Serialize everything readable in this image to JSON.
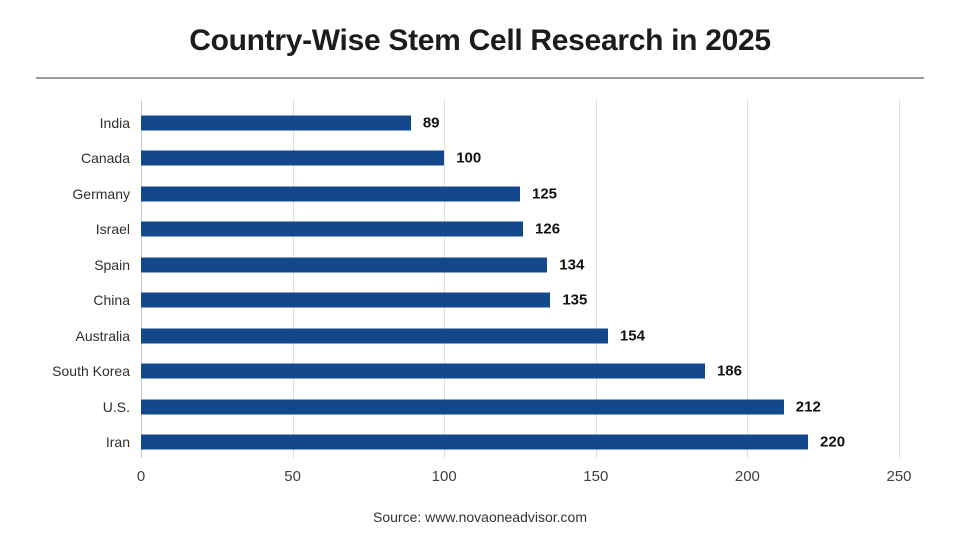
{
  "title": "Country-Wise Stem Cell Research in 2025",
  "footer": {
    "source": "Source: www.novaoneadvisor.com"
  },
  "colors": {
    "bar": "#13498C",
    "grid": "#DEDEDE",
    "axis_line": "#CCCCCC",
    "divider": "#9A9A9A",
    "title_text": "#1C1C1C",
    "label_text": "#2F2F2F",
    "value_text": "#111111",
    "tick_text": "#404040",
    "source_text": "#333333",
    "background": "#FFFFFF"
  },
  "chart_data": {
    "type": "bar",
    "orientation": "horizontal",
    "title": "Country-Wise Stem Cell Research in 2025",
    "categories": [
      "India",
      "Canada",
      "Germany",
      "Israel",
      "Spain",
      "China",
      "Australia",
      "South Korea",
      "U.S.",
      "Iran"
    ],
    "values": [
      89,
      100,
      125,
      126,
      134,
      135,
      154,
      186,
      212,
      220
    ],
    "xlabel": "",
    "ylabel": "",
    "xlim": [
      0,
      250
    ],
    "xticks": [
      0,
      50,
      100,
      150,
      200,
      250
    ],
    "grid": true,
    "legend": false,
    "value_labels": true,
    "bar_color": "#13498C",
    "source": "Source: www.novaoneadvisor.com"
  }
}
